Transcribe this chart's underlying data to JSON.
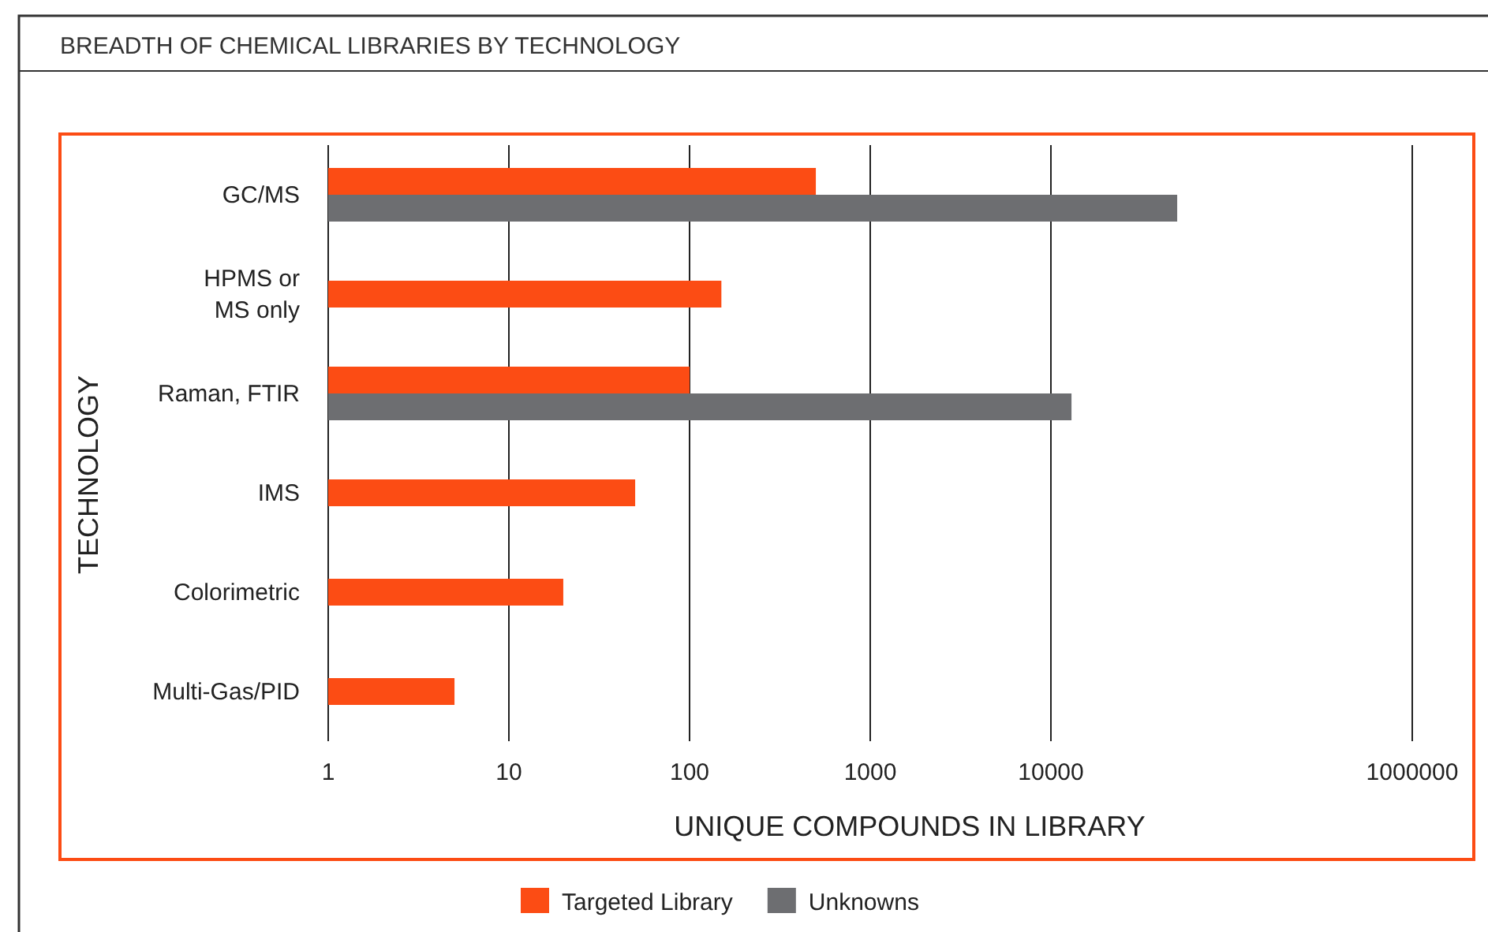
{
  "chart_data": {
    "type": "bar",
    "orientation": "horizontal",
    "title": "BREADTH OF CHEMICAL LIBRARIES BY TECHNOLOGY",
    "xlabel": "UNIQUE COMPOUNDS IN LIBRARY",
    "ylabel": "TECHNOLOGY",
    "categories": [
      "GC/MS",
      "HPMS or MS only",
      "Raman, FTIR",
      "IMS",
      "Colorimetric",
      "Multi-Gas/PID"
    ],
    "series": [
      {
        "name": "Targeted Library",
        "color": "#fc4c14",
        "values": [
          500,
          150,
          100,
          50,
          20,
          5
        ]
      },
      {
        "name": "Unknowns",
        "color": "#6d6e71",
        "values": [
          50000,
          null,
          13000,
          null,
          null,
          null
        ]
      }
    ],
    "log": "x",
    "xlim": [
      1,
      1000000
    ],
    "xticks": [
      1,
      10,
      100,
      1000,
      10000,
      1000000
    ],
    "grid": "x",
    "legend": "bottom"
  }
}
